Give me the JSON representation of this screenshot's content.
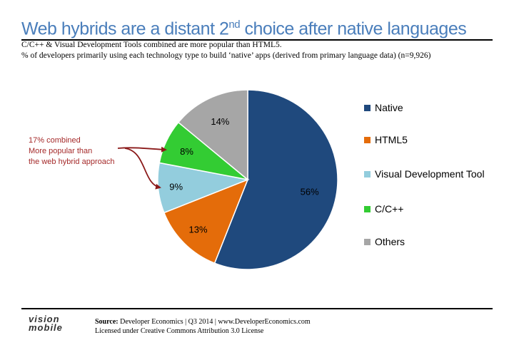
{
  "header": {
    "title_main": "Web hybrids are a distant 2",
    "title_sup": "nd",
    "title_rest": " choice after native languages",
    "subtitle1": "C/C++ & Visual Development Tools combined are more popular than HTML5.",
    "subtitle2": "% of developers primarily using each technology type to build ‘native’ apps (derived from primary language data) (n=9,926)"
  },
  "annotation": {
    "line1": "17% combined",
    "line2": "More popular than",
    "line3": "the web hybrid approach"
  },
  "footer": {
    "source_label": "Source:",
    "source_text": " Developer Economics | Q3 2014 | www.DeveloperEconomics.com",
    "license": "Licensed under Creative Commons Attribution 3.0 License",
    "logo_line1": "vision",
    "logo_line2": "mobile"
  },
  "chart_data": {
    "type": "pie",
    "title": "",
    "slices": [
      {
        "label": "Native",
        "value": 56,
        "data_label": "56%",
        "color": "#1f497d"
      },
      {
        "label": "HTML5",
        "value": 13,
        "data_label": "13%",
        "color": "#e46c0a"
      },
      {
        "label": "Visual Development Tool",
        "value": 9,
        "data_label": "9%",
        "color": "#93cddd"
      },
      {
        "label": "C/C++",
        "value": 8,
        "data_label": "8%",
        "color": "#33cc33"
      },
      {
        "label": "Others",
        "value": 14,
        "data_label": "14%",
        "color": "#a6a6a6"
      }
    ],
    "legend_position": "right"
  }
}
